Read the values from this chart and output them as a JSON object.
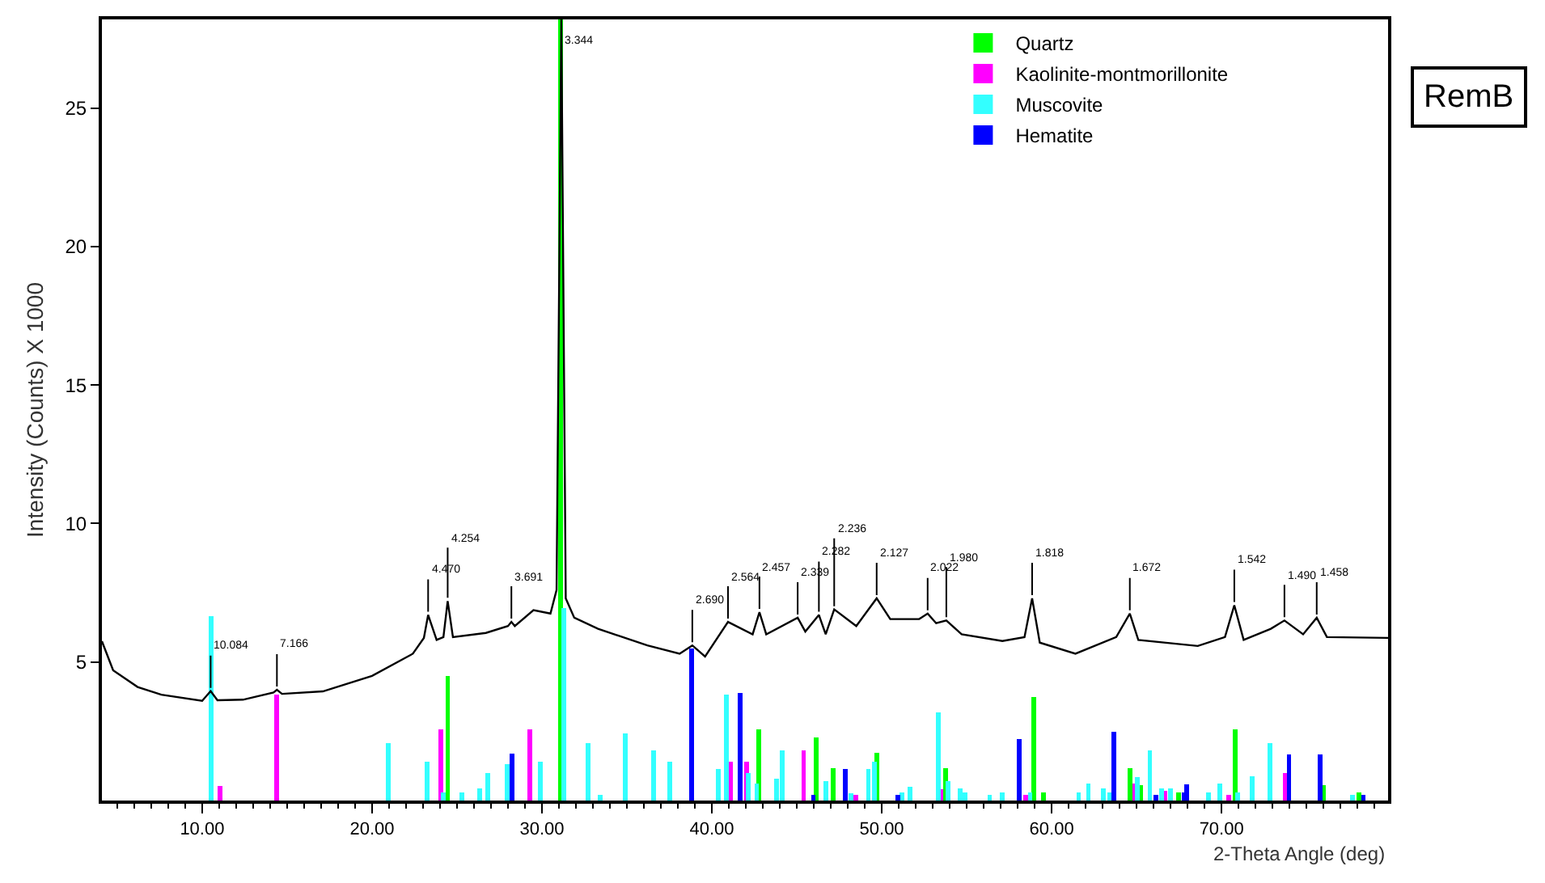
{
  "chart_data": {
    "type": "line",
    "xlabel": "2-Theta Angle (deg)",
    "ylabel": "Intensity (Counts) X 1000",
    "xlim": [
      4.1,
      79.8
    ],
    "ylim": [
      0,
      28.2
    ],
    "xticks": [
      {
        "value": 10,
        "label": "10.00"
      },
      {
        "value": 20,
        "label": "20.00"
      },
      {
        "value": 30,
        "label": "30.00"
      },
      {
        "value": 40,
        "label": "40.00"
      },
      {
        "value": 50,
        "label": "50.00"
      },
      {
        "value": 60,
        "label": "60.00"
      },
      {
        "value": 70,
        "label": "70.00"
      }
    ],
    "yticks": [
      5,
      10,
      15,
      20,
      25
    ],
    "grid": false,
    "legend": "top right",
    "marker": "none",
    "series": [
      {
        "color": "#000000",
        "x": [
          4.1,
          4.76,
          6.2,
          7.6,
          10,
          10.5,
          10.9,
          12.4,
          14.2,
          14.4,
          14.7,
          17.1,
          20,
          22.4,
          23.05,
          23.3,
          23.8,
          24.2,
          24.45,
          24.76,
          26.7,
          28.0,
          28.2,
          28.4,
          29.5,
          30.5,
          30.86,
          31.14,
          31.4,
          31.9,
          33.3,
          36.2,
          38.1,
          38.85,
          39.6,
          40.95,
          42.4,
          42.8,
          43.2,
          45.05,
          45.5,
          46.3,
          46.7,
          47.2,
          48.5,
          49.7,
          50.5,
          52.2,
          52.7,
          53.2,
          53.8,
          54.7,
          57.1,
          58.4,
          58.85,
          59.3,
          61.4,
          63.8,
          64.6,
          65.1,
          68.6,
          70.2,
          70.75,
          71.3,
          72.9,
          73.7,
          74.8,
          75.6,
          76.2,
          79.8
        ],
        "values": [
          5.75,
          4.7,
          4.1,
          3.82,
          3.6,
          3.95,
          3.62,
          3.64,
          3.9,
          4.0,
          3.85,
          3.94,
          4.5,
          5.3,
          5.87,
          6.7,
          5.8,
          5.9,
          7.2,
          5.9,
          6.05,
          6.3,
          6.45,
          6.3,
          6.87,
          6.75,
          7.6,
          28.2,
          7.3,
          6.6,
          6.2,
          5.6,
          5.3,
          5.6,
          5.2,
          6.45,
          6.0,
          6.8,
          6.0,
          6.6,
          6.1,
          6.7,
          6.0,
          6.9,
          6.3,
          7.3,
          6.55,
          6.55,
          6.75,
          6.4,
          6.5,
          6.0,
          5.76,
          5.9,
          7.3,
          5.7,
          5.3,
          5.9,
          6.75,
          5.8,
          5.58,
          5.9,
          7.05,
          5.8,
          6.2,
          6.5,
          6.0,
          6.6,
          5.9,
          5.87
        ]
      },
      {
        "type": "bar",
        "name": "Quartz",
        "color": "#00ff00",
        "x": [
          24.45,
          31.1,
          42.76,
          46.16,
          47.14,
          49.71,
          53.75,
          58.95,
          59.52,
          64.6,
          65.24,
          67.46,
          70.79,
          75.97,
          78.1
        ],
        "values": [
          4.51,
          28.2,
          2.57,
          2.28,
          1.17,
          1.73,
          1.17,
          3.74,
          0.3,
          1.17,
          0.56,
          0.3,
          2.57,
          0.56,
          0.3
        ]
      },
      {
        "type": "bar",
        "name": "Kaolinite-montmorillonite",
        "color": "#ff00ff",
        "x": [
          11.05,
          14.38,
          24.06,
          29.3,
          41.11,
          42.06,
          45.4,
          48.48,
          53.46,
          58.48,
          64.89,
          66.67,
          70.41,
          73.74
        ],
        "values": [
          0.53,
          3.83,
          2.57,
          2.57,
          1.4,
          1.4,
          1.8,
          0.2,
          0.4,
          0.2,
          0.6,
          0.35,
          0.2,
          0.98
        ]
      },
      {
        "type": "bar",
        "name": "Muscovite",
        "color": "#33ffff",
        "x": [
          10.54,
          20.95,
          23.24,
          24.2,
          25.27,
          26.35,
          26.83,
          27.94,
          29.9,
          31.3,
          32.7,
          33.43,
          34.92,
          36.57,
          37.52,
          40.38,
          40.86,
          42.16,
          42.64,
          43.81,
          44.13,
          46.73,
          48.19,
          49.21,
          49.55,
          51.17,
          51.68,
          53.33,
          53.9,
          54.6,
          54.92,
          56.35,
          57.08,
          58.73,
          61.59,
          62.16,
          63.05,
          63.4,
          65.05,
          65.78,
          66.48,
          66.98,
          69.21,
          69.9,
          70.95,
          71.8,
          72.86,
          77.71
        ],
        "values": [
          6.65,
          2.08,
          1.4,
          0.3,
          0.3,
          0.45,
          0.98,
          1.3,
          1.4,
          6.95,
          2.08,
          0.2,
          2.43,
          1.8,
          1.4,
          1.15,
          3.83,
          1.0,
          0.6,
          0.8,
          1.8,
          0.7,
          0.25,
          1.15,
          1.4,
          0.3,
          0.5,
          3.19,
          0.7,
          0.45,
          0.3,
          0.2,
          0.3,
          0.3,
          0.3,
          0.6,
          0.45,
          0.3,
          0.85,
          1.8,
          0.45,
          0.45,
          0.3,
          0.6,
          0.3,
          0.88,
          2.08,
          0.2
        ]
      },
      {
        "type": "bar",
        "name": "Hematite",
        "color": "#0000ff",
        "x": [
          28.22,
          38.79,
          41.65,
          45.97,
          47.84,
          50.95,
          58.1,
          63.65,
          66.12,
          67.81,
          67.94,
          73.97,
          75.81,
          78.35
        ],
        "values": [
          1.69,
          5.49,
          3.87,
          0.2,
          1.15,
          0.2,
          2.22,
          2.47,
          0.2,
          0.3,
          0.58,
          1.66,
          1.66,
          0.2
        ]
      }
    ],
    "annotations": [
      {
        "text": "10.084",
        "x": 10.5,
        "y": 3.95
      },
      {
        "text": "7.166",
        "x": 14.4,
        "y": 4.0
      },
      {
        "text": "4.470",
        "x": 23.3,
        "y": 6.7
      },
      {
        "text": "4.254",
        "x": 24.45,
        "y": 7.2
      },
      {
        "text": "3.691",
        "x": 28.2,
        "y": 6.45
      },
      {
        "text": "3.344",
        "x": 31.14,
        "y": 28.2
      },
      {
        "text": "2.690",
        "x": 38.85,
        "y": 5.6
      },
      {
        "text": "2.564",
        "x": 40.95,
        "y": 6.45
      },
      {
        "text": "2.457",
        "x": 42.8,
        "y": 6.8
      },
      {
        "text": "2.339",
        "x": 45.05,
        "y": 6.6
      },
      {
        "text": "2.282",
        "x": 46.3,
        "y": 6.7
      },
      {
        "text": "2.236",
        "x": 47.2,
        "y": 6.9
      },
      {
        "text": "2.127",
        "x": 49.7,
        "y": 7.3
      },
      {
        "text": "2.022",
        "x": 52.7,
        "y": 6.75
      },
      {
        "text": "1.980",
        "x": 53.8,
        "y": 6.5
      },
      {
        "text": "1.818",
        "x": 58.85,
        "y": 7.3
      },
      {
        "text": "1.672",
        "x": 64.6,
        "y": 6.75
      },
      {
        "text": "1.542",
        "x": 70.75,
        "y": 7.05
      },
      {
        "text": "1.490",
        "x": 73.7,
        "y": 6.5
      },
      {
        "text": "1.458",
        "x": 75.6,
        "y": 6.6
      },
      "RemB"
    ]
  }
}
